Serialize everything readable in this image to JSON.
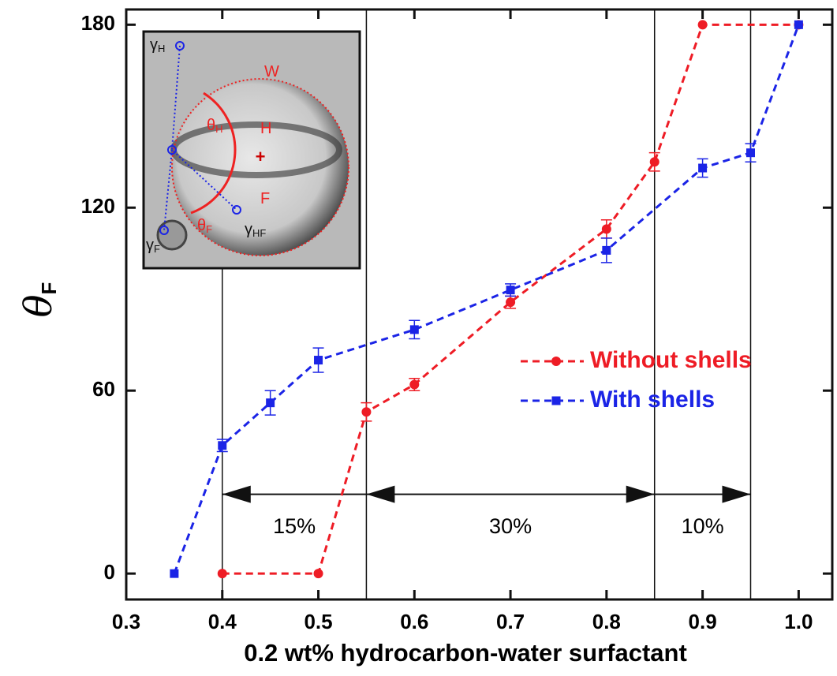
{
  "chart_data": {
    "type": "line",
    "x_label": "0.2 wt% hydrocarbon-water surfactant",
    "y_label": {
      "main": "θ",
      "sub": "F"
    },
    "xlim": [
      0.3,
      1.035
    ],
    "ylim": [
      -8.5,
      185
    ],
    "xticks": [
      0.3,
      0.4,
      0.5,
      0.6,
      0.7,
      0.8,
      0.9,
      {
        "value": 1,
        "label": "1.0"
      }
    ],
    "yticks": [
      0,
      60,
      120,
      180
    ],
    "legend_loc": "center right",
    "series": [
      {
        "name": "Without shells",
        "color": "#ee1c25",
        "marker": "circle",
        "x": [
          0.4,
          0.5,
          0.55,
          0.6,
          0.7,
          0.8,
          0.85,
          0.9,
          1
        ],
        "values": [
          0,
          0,
          53,
          62,
          89,
          113,
          135,
          180,
          180
        ],
        "errors": [
          null,
          null,
          3,
          2,
          2,
          3,
          3,
          null,
          null
        ]
      },
      {
        "name": "With shells",
        "color": "#1b24e6",
        "marker": "square",
        "x": [
          0.35,
          0.4,
          0.45,
          0.5,
          0.6,
          0.7,
          0.8,
          0.9,
          0.95,
          1
        ],
        "values": [
          0,
          42,
          56,
          70,
          80,
          93,
          106,
          133,
          138,
          180
        ],
        "errors": [
          null,
          2,
          4,
          4,
          3,
          2,
          4,
          3,
          3,
          null
        ]
      }
    ],
    "vlines": [
      0.4,
      0.55,
      0.85,
      0.95
    ],
    "arrows": [
      {
        "label": "15%",
        "x": [
          0.4,
          0.55
        ],
        "y": 26
      },
      {
        "label": "30%",
        "x": [
          0.55,
          0.85
        ],
        "y": 26
      },
      {
        "label": "10%",
        "x": [
          0.85,
          0.95
        ],
        "y": 26
      }
    ],
    "inset_labels": [
      {
        "text": "γ",
        "sub": "H"
      },
      {
        "text": "W",
        "sub": null
      },
      {
        "text": "θ",
        "sub": "H"
      },
      {
        "text": "H",
        "sub": null
      },
      {
        "text": "F",
        "sub": null
      },
      {
        "text": "θ",
        "sub": "F"
      },
      {
        "text": "γ",
        "sub": "HF"
      },
      {
        "text": "γ",
        "sub": "F"
      }
    ]
  }
}
